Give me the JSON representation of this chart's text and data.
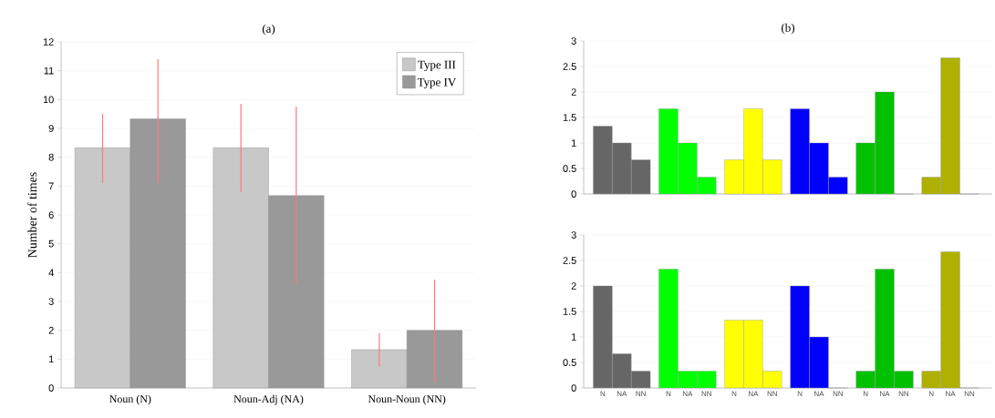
{
  "chart_data": [
    {
      "type": "bar",
      "title": "(a)",
      "ylabel": "Number of times",
      "categories": [
        "Noun (N)",
        "Noun-Adj (NA)",
        "Noun-Noun (NN)"
      ],
      "series": [
        {
          "name": "Type III",
          "color": "#c8c8c8",
          "values": [
            8.33,
            8.33,
            1.33
          ],
          "errors": [
            [
              7.1,
              9.5
            ],
            [
              6.8,
              9.85
            ],
            [
              0.75,
              1.9
            ]
          ]
        },
        {
          "name": "Type IV",
          "color": "#999999",
          "values": [
            9.33,
            6.67,
            2
          ],
          "errors": [
            [
              7.1,
              11.4
            ],
            [
              3.6,
              9.75
            ],
            [
              0.2,
              3.75
            ]
          ]
        }
      ],
      "ylim": [
        0,
        12
      ],
      "yticks": [
        0,
        1,
        2,
        3,
        4,
        5,
        6,
        7,
        8,
        9,
        10,
        11,
        12
      ],
      "grid": "y",
      "legend": "top right"
    },
    {
      "type": "bar",
      "title": "(b)",
      "categories": [
        null,
        null,
        null,
        null,
        null,
        null,
        null,
        null,
        null,
        null,
        null,
        null,
        null,
        null,
        null,
        null,
        null,
        null
      ],
      "values": [
        1.33,
        1,
        0.67,
        1.67,
        1,
        0.33,
        0.67,
        1.67,
        0.67,
        1.67,
        1,
        0.33,
        1,
        2,
        0,
        0.33,
        2.67,
        0
      ],
      "colors": [
        "#666666",
        "#666666",
        "#666666",
        "#00ff00",
        "#00ff00",
        "#00ff00",
        "#ffff00",
        "#ffff00",
        "#ffff00",
        "#0000ff",
        "#0000ff",
        "#0000ff",
        "#00c000",
        "#00c000",
        "#00c000",
        "#b0b000",
        "#b0b000",
        "#b0b000"
      ],
      "ylim": [
        0,
        3
      ],
      "yticks": [
        0,
        0.5,
        1,
        1.5,
        2,
        2.5,
        3
      ],
      "grid": "y",
      "tick_labels": "y"
    },
    {
      "type": "bar",
      "categories": [
        "N",
        "NA",
        "NN",
        "N",
        "NA",
        "NN",
        "N",
        "NA",
        "NN",
        "N",
        "NA",
        "NN",
        "N",
        "NA",
        "NN",
        "N",
        "NA",
        "NN"
      ],
      "values": [
        2,
        0.67,
        0.33,
        2.33,
        0.33,
        0.33,
        1.33,
        1.33,
        0.33,
        2,
        1,
        0,
        0.33,
        2.33,
        0.33,
        0.33,
        2.67,
        0
      ],
      "colors": [
        "#666666",
        "#666666",
        "#666666",
        "#00ff00",
        "#00ff00",
        "#00ff00",
        "#ffff00",
        "#ffff00",
        "#ffff00",
        "#0000ff",
        "#0000ff",
        "#0000ff",
        "#00c000",
        "#00c000",
        "#00c000",
        "#b0b000",
        "#b0b000",
        "#b0b000"
      ],
      "ylim": [
        0,
        3
      ],
      "yticks": [
        0,
        0.5,
        1,
        1.5,
        2,
        2.5,
        3
      ],
      "grid": "y"
    }
  ]
}
